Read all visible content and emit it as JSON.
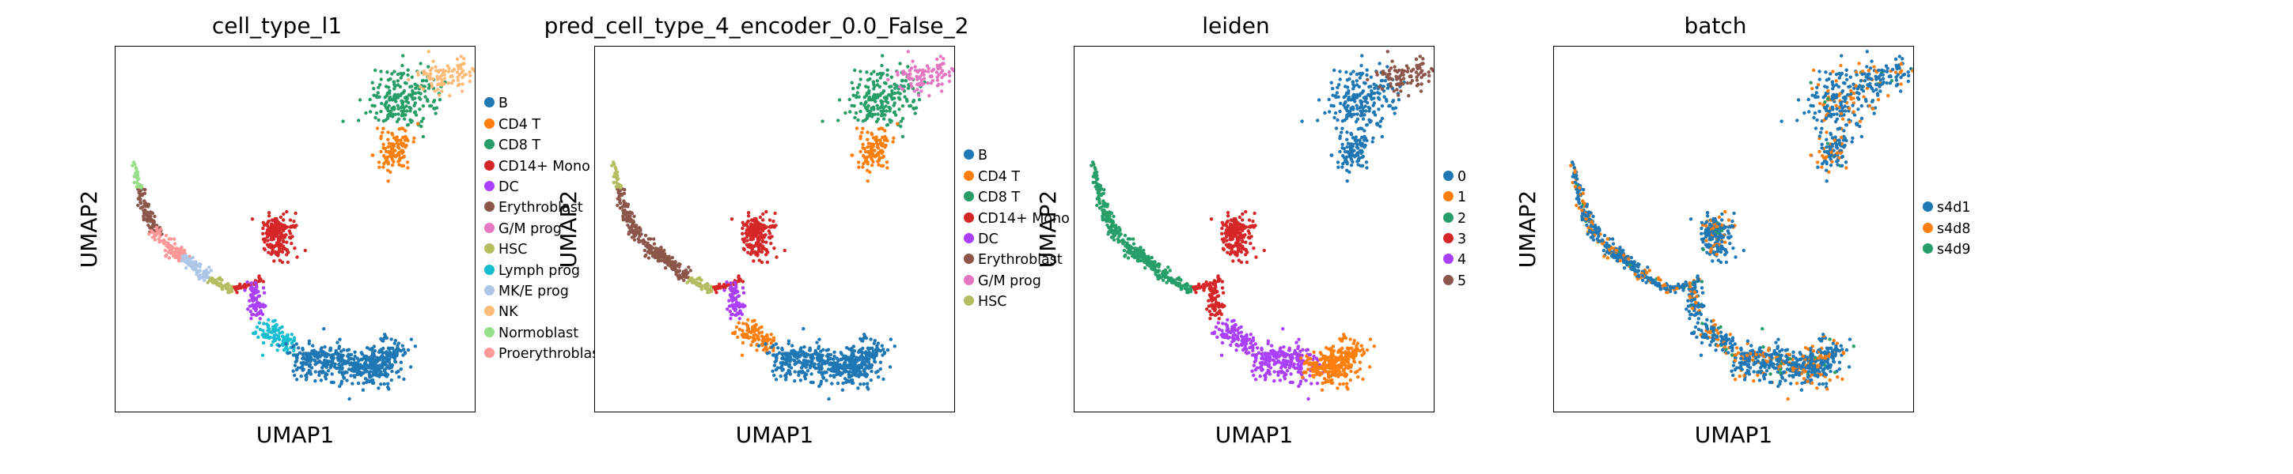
{
  "panels": [
    {
      "title": "cell_type_l1",
      "xlabel": "UMAP1",
      "ylabel": "UMAP2",
      "legend": [
        {
          "name": "B",
          "color": "#1f77b4"
        },
        {
          "name": "CD4 T",
          "color": "#ff7f0e"
        },
        {
          "name": "CD8 T",
          "color": "#279e68"
        },
        {
          "name": "CD14+ Mono",
          "color": "#d62728"
        },
        {
          "name": "DC",
          "color": "#aa40fc"
        },
        {
          "name": "Erythroblast",
          "color": "#8c564b"
        },
        {
          "name": "G/M prog",
          "color": "#e377c2"
        },
        {
          "name": "HSC",
          "color": "#b5bd61"
        },
        {
          "name": "Lymph prog",
          "color": "#17becf"
        },
        {
          "name": "MK/E prog",
          "color": "#aec7e8"
        },
        {
          "name": "NK",
          "color": "#ffbb78"
        },
        {
          "name": "Normoblast",
          "color": "#98df8a"
        },
        {
          "name": "Proerythroblast",
          "color": "#ff9896"
        }
      ],
      "clusters": {
        "tcell_upper": "CD8 T",
        "tcell_right": "NK",
        "tcell_lower": "CD4 T",
        "traj_top": "Erythroblast",
        "traj_pink": "Proerythroblast",
        "traj_mke": "MK/E prog",
        "traj_tail": "HSC",
        "traj_normo": "Normoblast",
        "mono": "CD14+ Mono",
        "dc": "DC",
        "lymph": "Lymph prog",
        "b_left": "B",
        "b_right": "B",
        "b_mid": "B"
      }
    },
    {
      "title": "pred_cell_type_4_encoder_0.0_False_2",
      "xlabel": "UMAP1",
      "ylabel": "UMAP2",
      "legend": [
        {
          "name": "B",
          "color": "#1f77b4"
        },
        {
          "name": "CD4 T",
          "color": "#ff7f0e"
        },
        {
          "name": "CD8 T",
          "color": "#279e68"
        },
        {
          "name": "CD14+ Mono",
          "color": "#d62728"
        },
        {
          "name": "DC",
          "color": "#aa40fc"
        },
        {
          "name": "Erythroblast",
          "color": "#8c564b"
        },
        {
          "name": "G/M prog",
          "color": "#e377c2"
        },
        {
          "name": "HSC",
          "color": "#b5bd61"
        }
      ],
      "clusters": {
        "tcell_upper": "CD8 T",
        "tcell_right": "G/M prog",
        "tcell_lower": "CD4 T",
        "traj_top": "Erythroblast",
        "traj_pink": "Erythroblast",
        "traj_mke": "Erythroblast",
        "traj_tail": "HSC",
        "traj_normo": "HSC",
        "mono": "CD14+ Mono",
        "dc": "DC",
        "lymph": "CD4 T",
        "b_left": "B",
        "b_right": "B",
        "b_mid": "B"
      }
    },
    {
      "title": "leiden",
      "xlabel": "UMAP1",
      "ylabel": "UMAP2",
      "legend": [
        {
          "name": "0",
          "color": "#1f77b4"
        },
        {
          "name": "1",
          "color": "#ff7f0e"
        },
        {
          "name": "2",
          "color": "#279e68"
        },
        {
          "name": "3",
          "color": "#d62728"
        },
        {
          "name": "4",
          "color": "#aa40fc"
        },
        {
          "name": "5",
          "color": "#8c564b"
        }
      ],
      "clusters": {
        "tcell_upper": "0",
        "tcell_right": "5",
        "tcell_lower": "0",
        "traj_top": "2",
        "traj_pink": "2",
        "traj_mke": "2",
        "traj_tail": "2",
        "traj_normo": "2",
        "mono": "3",
        "dc": "3",
        "lymph": "4",
        "b_left": "4",
        "b_right": "1",
        "b_mid": "1"
      }
    },
    {
      "title": "batch",
      "xlabel": "UMAP1",
      "ylabel": "UMAP2",
      "legend": [
        {
          "name": "s4d1",
          "color": "#1f77b4"
        },
        {
          "name": "s4d8",
          "color": "#ff7f0e"
        },
        {
          "name": "s4d9",
          "color": "#279e68"
        }
      ],
      "clusters": {},
      "mix": {
        "s4d1": 0.75,
        "s4d8": 0.22,
        "s4d9": 0.03
      }
    }
  ],
  "chart_data": [
    {
      "type": "scatter",
      "title": "cell_type_l1",
      "xlabel": "UMAP1",
      "ylabel": "UMAP2",
      "color_by": "cell_type_l1",
      "categories": [
        "B",
        "CD4 T",
        "CD8 T",
        "CD14+ Mono",
        "DC",
        "Erythroblast",
        "G/M prog",
        "HSC",
        "Lymph prog",
        "MK/E prog",
        "NK",
        "Normoblast",
        "Proerythroblast"
      ]
    },
    {
      "type": "scatter",
      "title": "pred_cell_type_4_encoder_0.0_False_2",
      "xlabel": "UMAP1",
      "ylabel": "UMAP2",
      "color_by": "pred_cell_type_4_encoder_0.0_False_2",
      "categories": [
        "B",
        "CD4 T",
        "CD8 T",
        "CD14+ Mono",
        "DC",
        "Erythroblast",
        "G/M prog",
        "HSC"
      ]
    },
    {
      "type": "scatter",
      "title": "leiden",
      "xlabel": "UMAP1",
      "ylabel": "UMAP2",
      "color_by": "leiden",
      "categories": [
        "0",
        "1",
        "2",
        "3",
        "4",
        "5"
      ]
    },
    {
      "type": "scatter",
      "title": "batch",
      "xlabel": "UMAP1",
      "ylabel": "UMAP2",
      "color_by": "batch",
      "categories": [
        "s4d1",
        "s4d8",
        "s4d9"
      ]
    }
  ]
}
